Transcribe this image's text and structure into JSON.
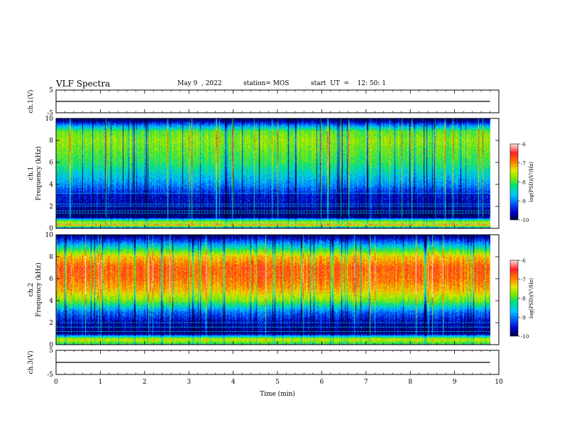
{
  "header": {
    "title": "VLF Spectra",
    "date": "May 9  , 2022",
    "station": "station= MOS",
    "start": "start  UT  =    12: 50: 1"
  },
  "colors": {
    "cmap": [
      "#000040",
      "#0000c8",
      "#0060ff",
      "#00c8ff",
      "#00e080",
      "#80e800",
      "#e8e800",
      "#ff8000",
      "#ff2020",
      "#ffe0e0"
    ],
    "trace": "#000000",
    "lines": "#00e8ff"
  },
  "chart_data": [
    {
      "type": "line",
      "panel": "ch1-voltage",
      "ylabel": "ch.1(V)",
      "ylim": [
        -5,
        5
      ],
      "yticks": [
        "5",
        "-5"
      ],
      "x": [
        0,
        9.8
      ],
      "y": [
        0,
        0
      ],
      "xlim": [
        0,
        10
      ]
    },
    {
      "type": "heatmap",
      "panel": "ch1-spectrogram",
      "ylabel": "ch.1\nFrequency  (kHz)",
      "ylim": [
        0,
        10
      ],
      "yticks": [
        "0",
        "2",
        "4",
        "6",
        "8",
        "10"
      ],
      "xlim": [
        0,
        10
      ],
      "x_extent": [
        0,
        9.8
      ],
      "colorbar": {
        "label": "log(PSD)(V²/Hz)",
        "range": [
          -10,
          -6
        ],
        "ticks": [
          "-6",
          "-7",
          "-8",
          "-9",
          "-10"
        ]
      },
      "band_profile_kHz_to_log_psd": [
        [
          0.0,
          -9.2
        ],
        [
          0.3,
          -7.0
        ],
        [
          0.7,
          -8.0
        ],
        [
          1.0,
          -9.8
        ],
        [
          1.5,
          -9.9
        ],
        [
          2.0,
          -9.6
        ],
        [
          3.0,
          -9.5
        ],
        [
          4.0,
          -8.9
        ],
        [
          5.0,
          -8.5
        ],
        [
          6.0,
          -8.1
        ],
        [
          7.0,
          -7.9
        ],
        [
          8.0,
          -7.7
        ],
        [
          8.8,
          -7.9
        ],
        [
          9.3,
          -8.8
        ],
        [
          9.8,
          -9.8
        ]
      ],
      "horizontal_lines_kHz": [
        0.4,
        0.8,
        1.4,
        1.6,
        2.0,
        2.2,
        3.2
      ]
    },
    {
      "type": "heatmap",
      "panel": "ch2-spectrogram",
      "ylabel": "ch.2\nFrequency  (kHz)",
      "ylim": [
        0,
        10
      ],
      "yticks": [
        "0",
        "2",
        "4",
        "6",
        "8",
        "10"
      ],
      "xlim": [
        0,
        10
      ],
      "x_extent": [
        0,
        9.8
      ],
      "colorbar": {
        "label": "log(PSD)(V²/Hz)",
        "range": [
          -10,
          -6
        ],
        "ticks": [
          "-6",
          "-7",
          "-8",
          "-9",
          "-10"
        ]
      },
      "band_profile_kHz_to_log_psd": [
        [
          0.0,
          -8.2
        ],
        [
          0.5,
          -7.4
        ],
        [
          1.0,
          -9.8
        ],
        [
          1.5,
          -9.7
        ],
        [
          2.0,
          -9.6
        ],
        [
          3.0,
          -9.0
        ],
        [
          4.0,
          -7.8
        ],
        [
          5.0,
          -7.1
        ],
        [
          6.0,
          -6.8
        ],
        [
          7.0,
          -6.7
        ],
        [
          8.0,
          -7.2
        ],
        [
          9.0,
          -8.6
        ],
        [
          9.8,
          -9.7
        ]
      ],
      "horizontal_lines_kHz": [
        0.7,
        1.2,
        1.6,
        2.0
      ]
    },
    {
      "type": "line",
      "panel": "ch3-voltage",
      "ylabel": "ch.3(V)",
      "ylim": [
        -5,
        5
      ],
      "yticks": [
        "5",
        "-5"
      ],
      "x": [
        0,
        9.8
      ],
      "y": [
        0,
        0
      ],
      "xlim": [
        0,
        10
      ],
      "xlabel": "Time  (min)",
      "xticks": [
        "0",
        "1",
        "2",
        "3",
        "4",
        "5",
        "6",
        "7",
        "8",
        "9",
        "10"
      ]
    }
  ]
}
